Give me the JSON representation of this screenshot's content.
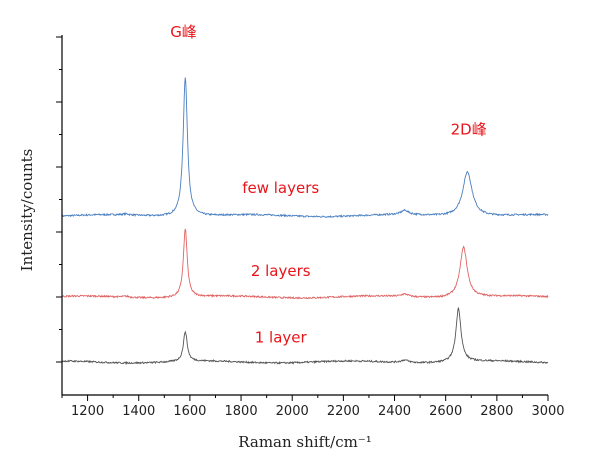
{
  "chart_data": {
    "type": "line",
    "xlabel": "Raman shift/cm⁻¹",
    "ylabel": "Intensity/counts",
    "xlim": [
      1100,
      3000
    ],
    "ylim": [
      0,
      10
    ],
    "x_ticks": [
      1200,
      1400,
      1600,
      1800,
      2000,
      2200,
      2400,
      2600,
      2800,
      3000
    ],
    "y_ticks_shown": false,
    "grid": false,
    "legend": "none",
    "series": [
      {
        "name": "few layers",
        "color": "#4a7fc1",
        "baseline": 4.5,
        "noise": 0.025,
        "peaks": [
          {
            "center": 1350,
            "height": 0.03,
            "width": 15
          },
          {
            "center": 1582,
            "height": 4.3,
            "width": 10
          },
          {
            "center": 2440,
            "height": 0.13,
            "width": 18
          },
          {
            "center": 2685,
            "height": 1.38,
            "width": 22
          }
        ]
      },
      {
        "name": "2 layers",
        "color": "#e06464",
        "baseline": 2.0,
        "noise": 0.025,
        "peaks": [
          {
            "center": 1350,
            "height": 0.03,
            "width": 15
          },
          {
            "center": 1582,
            "height": 2.1,
            "width": 9
          },
          {
            "center": 2440,
            "height": 0.08,
            "width": 18
          },
          {
            "center": 2670,
            "height": 1.55,
            "width": 17
          }
        ]
      },
      {
        "name": "1 layer",
        "color": "#555555",
        "baseline": 0.0,
        "noise": 0.025,
        "peaks": [
          {
            "center": 1582,
            "height": 0.92,
            "width": 9
          },
          {
            "center": 2440,
            "height": 0.08,
            "width": 18
          },
          {
            "center": 2650,
            "height": 1.65,
            "width": 12
          }
        ]
      }
    ],
    "annotations": [
      {
        "text": "G峰",
        "x": 1575,
        "y": 10.0
      },
      {
        "text": "2D峰",
        "x": 2690,
        "y": 7.0
      },
      {
        "text": "few layers",
        "x": 1955,
        "y": 5.2
      },
      {
        "text": "2 layers",
        "x": 1955,
        "y": 2.65
      },
      {
        "text": "1 layer",
        "x": 1955,
        "y": 0.6
      }
    ]
  }
}
